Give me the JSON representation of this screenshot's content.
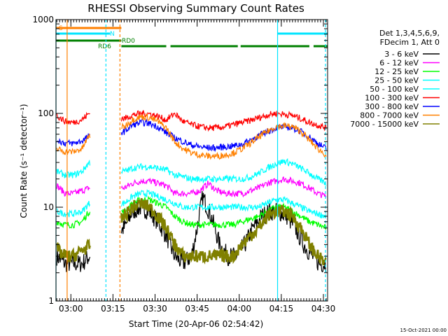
{
  "chart_data": {
    "type": "line",
    "title": "RHESSI Observing Summary Count Rates",
    "xlabel": "Start Time (20-Apr-06 02:54:42)",
    "ylabel": "Count Rate (s⁻¹ detector⁻¹)",
    "y_scale": "log",
    "ylim": [
      1,
      1000
    ],
    "xlim": [
      "02:54:42",
      "04:31:30"
    ],
    "x_ticks": [
      "03:00",
      "03:15",
      "03:30",
      "03:45",
      "04:00",
      "04:15",
      "04:30"
    ],
    "y_ticks": [
      "1",
      "10",
      "100",
      "1000"
    ],
    "footer_date": "15-Oct-2021 00:00",
    "legend": {
      "header": [
        "Det 1,3,4,5,6,9,",
        "FDecim 1, Att 0"
      ],
      "position": "right"
    },
    "flags": [
      {
        "label": "S",
        "color": "#ff8000",
        "segments": [
          [
            "02:54:42",
            "03:18:00"
          ]
        ]
      },
      {
        "label": "N",
        "color": "#00e5ff",
        "segments": [
          [
            "02:54:42",
            "03:14:00"
          ],
          [
            "04:13:40",
            "04:31:30"
          ]
        ]
      },
      {
        "label": "RD0",
        "color": "#008000",
        "segments": [
          [
            "02:54:42",
            "03:18:00"
          ]
        ]
      },
      {
        "label": "RD6",
        "color": "#008000",
        "segments": [
          [
            "03:18:00",
            "03:34:00"
          ],
          [
            "03:35:30",
            "03:59:30"
          ],
          [
            "04:00:30",
            "04:25:00"
          ],
          [
            "04:26:30",
            "04:31:30"
          ]
        ]
      }
    ],
    "markers": [
      {
        "time": "02:54:42",
        "color": "#00e5ff",
        "style": "solid"
      },
      {
        "time": "02:58:40",
        "color": "#ff8000",
        "style": "solid"
      },
      {
        "time": "03:12:30",
        "color": "#00e5ff",
        "style": "dashed"
      },
      {
        "time": "03:17:30",
        "color": "#ff8000",
        "style": "dashed"
      },
      {
        "time": "04:13:40",
        "color": "#00e5ff",
        "style": "solid"
      },
      {
        "time": "04:30:45",
        "color": "#00e5ff",
        "style": "dashed"
      }
    ],
    "data_gaps": [
      [
        "03:06:50",
        "03:17:50"
      ]
    ],
    "series": [
      {
        "name": "3 - 6 keV",
        "color": "#000000",
        "times": [
          "02:55:00",
          "02:58:00",
          "03:01:00",
          "03:04:00",
          "03:06:30",
          "03:19:00",
          "03:22:00",
          "03:25:00",
          "03:28:00",
          "03:31:00",
          "03:34:00",
          "03:37:00",
          "03:40:00",
          "03:43:00",
          "03:45:00",
          "03:47:00",
          "03:50:00",
          "03:53:00",
          "03:56:00",
          "03:59:00",
          "04:02:00",
          "04:05:00",
          "04:08:00",
          "04:11:00",
          "04:14:00",
          "04:17:00",
          "04:20:00",
          "04:23:00",
          "04:26:00",
          "04:28:30",
          "04:31:00"
        ],
        "values": [
          3,
          2.5,
          2.5,
          2.5,
          3,
          6,
          9,
          10,
          9,
          7,
          5,
          3,
          2.5,
          3,
          6,
          13,
          8,
          4,
          3,
          3,
          4,
          6,
          8,
          9,
          9,
          8,
          6,
          4,
          3,
          2.5,
          2.5
        ]
      },
      {
        "name": "6 - 12 keV",
        "color": "#ff00ff",
        "times": [
          "02:55:00",
          "02:58:00",
          "03:01:00",
          "03:04:00",
          "03:06:30",
          "03:19:00",
          "03:22:00",
          "03:25:00",
          "03:28:00",
          "03:31:00",
          "03:34:00",
          "03:37:00",
          "03:40:00",
          "03:43:00",
          "03:46:00",
          "03:49:00",
          "03:52:00",
          "03:55:00",
          "03:58:00",
          "04:01:00",
          "04:04:00",
          "04:07:00",
          "04:10:00",
          "04:13:00",
          "04:16:00",
          "04:19:00",
          "04:22:00",
          "04:25:00",
          "04:28:00",
          "04:31:00"
        ],
        "values": [
          17,
          14,
          14,
          15,
          16,
          16,
          18,
          19,
          19,
          18,
          17,
          14,
          14,
          14,
          15,
          18,
          15,
          14,
          14,
          14,
          15,
          16,
          18,
          19,
          20,
          19,
          18,
          16,
          14,
          13
        ]
      },
      {
        "name": "12 - 25 keV",
        "color": "#00ff00",
        "times": [
          "02:55:00",
          "02:58:00",
          "03:01:00",
          "03:04:00",
          "03:06:30",
          "03:19:00",
          "03:22:00",
          "03:25:00",
          "03:28:00",
          "03:31:00",
          "03:34:00",
          "03:37:00",
          "03:40:00",
          "03:43:00",
          "03:46:00",
          "03:49:00",
          "03:52:00",
          "03:55:00",
          "03:58:00",
          "04:01:00",
          "04:04:00",
          "04:07:00",
          "04:10:00",
          "04:13:00",
          "04:16:00",
          "04:19:00",
          "04:22:00",
          "04:25:00",
          "04:28:00",
          "04:31:00"
        ],
        "values": [
          7,
          6.5,
          6.5,
          7,
          9,
          9,
          11,
          12,
          12,
          11,
          10,
          8,
          7,
          6.5,
          6.5,
          6.5,
          6.5,
          6.5,
          6.5,
          7,
          7.5,
          8,
          9,
          10,
          10,
          9,
          8,
          7,
          6.5,
          6
        ]
      },
      {
        "name": "25 - 50 keV",
        "color": "#00ffff",
        "times": [
          "02:55:00",
          "02:58:00",
          "03:01:00",
          "03:04:00",
          "03:06:30",
          "03:19:00",
          "03:22:00",
          "03:25:00",
          "03:28:00",
          "03:31:00",
          "03:34:00",
          "03:37:00",
          "03:40:00",
          "03:43:00",
          "03:46:00",
          "03:49:00",
          "03:52:00",
          "03:55:00",
          "03:58:00",
          "04:01:00",
          "04:04:00",
          "04:07:00",
          "04:10:00",
          "04:13:00",
          "04:16:00",
          "04:19:00",
          "04:22:00",
          "04:25:00",
          "04:28:00",
          "04:31:00"
        ],
        "values": [
          9,
          8.5,
          8.5,
          9,
          11,
          11,
          13,
          14,
          14,
          13,
          12,
          11,
          10,
          10,
          10,
          10,
          10,
          10,
          10,
          10,
          10,
          10,
          11,
          12,
          12,
          11,
          10,
          9,
          8.5,
          8
        ]
      },
      {
        "name": "50 - 100 keV",
        "color": "#00ffff",
        "times": [
          "02:55:00",
          "02:58:00",
          "03:01:00",
          "03:04:00",
          "03:06:30",
          "03:19:00",
          "03:22:00",
          "03:25:00",
          "03:28:00",
          "03:31:00",
          "03:34:00",
          "03:37:00",
          "03:40:00",
          "03:43:00",
          "03:46:00",
          "03:49:00",
          "03:52:00",
          "03:55:00",
          "03:58:00",
          "04:01:00",
          "04:04:00",
          "04:07:00",
          "04:10:00",
          "04:13:00",
          "04:16:00",
          "04:19:00",
          "04:22:00",
          "04:25:00",
          "04:28:00",
          "04:31:00"
        ],
        "values": [
          24,
          22,
          22,
          24,
          30,
          24,
          26,
          27,
          27,
          26,
          25,
          22,
          21,
          20,
          20,
          20,
          20,
          20,
          20,
          20,
          21,
          23,
          26,
          29,
          31,
          29,
          26,
          23,
          20,
          18
        ]
      },
      {
        "name": "100 - 300 keV",
        "color": "#ff0000",
        "times": [
          "02:55:00",
          "02:58:00",
          "03:01:00",
          "03:04:00",
          "03:06:30",
          "03:19:00",
          "03:22:00",
          "03:25:00",
          "03:28:00",
          "03:31:00",
          "03:34:00",
          "03:37:00",
          "03:40:00",
          "03:43:00",
          "03:46:00",
          "03:49:00",
          "03:52:00",
          "03:55:00",
          "03:58:00",
          "04:01:00",
          "04:04:00",
          "04:07:00",
          "04:10:00",
          "04:13:00",
          "04:16:00",
          "04:19:00",
          "04:22:00",
          "04:25:00",
          "04:28:00",
          "04:31:00"
        ],
        "values": [
          95,
          82,
          80,
          86,
          100,
          88,
          96,
          100,
          99,
          93,
          85,
          100,
          82,
          76,
          72,
          70,
          70,
          72,
          76,
          80,
          84,
          90,
          96,
          100,
          98,
          95,
          88,
          80,
          75,
          70
        ]
      },
      {
        "name": "300 - 800 keV",
        "color": "#0000ff",
        "times": [
          "02:55:00",
          "02:58:00",
          "03:01:00",
          "03:04:00",
          "03:06:30",
          "03:19:00",
          "03:22:00",
          "03:25:00",
          "03:28:00",
          "03:31:00",
          "03:34:00",
          "03:37:00",
          "03:40:00",
          "03:43:00",
          "03:46:00",
          "03:49:00",
          "03:52:00",
          "03:55:00",
          "03:58:00",
          "04:01:00",
          "04:04:00",
          "04:07:00",
          "04:10:00",
          "04:13:00",
          "04:16:00",
          "04:19:00",
          "04:22:00",
          "04:25:00",
          "04:28:00",
          "04:31:00"
        ],
        "values": [
          52,
          48,
          48,
          51,
          57,
          64,
          75,
          80,
          78,
          72,
          62,
          55,
          50,
          46,
          44,
          43,
          43,
          44,
          45,
          47,
          52,
          58,
          64,
          70,
          72,
          70,
          64,
          56,
          48,
          42
        ]
      },
      {
        "name": "800 - 7000 keV",
        "color": "#ff8000",
        "times": [
          "02:55:00",
          "02:58:00",
          "03:01:00",
          "03:04:00",
          "03:06:30",
          "03:19:00",
          "03:22:00",
          "03:25:00",
          "03:28:00",
          "03:31:00",
          "03:34:00",
          "03:37:00",
          "03:40:00",
          "03:43:00",
          "03:46:00",
          "03:49:00",
          "03:52:00",
          "03:55:00",
          "03:58:00",
          "04:01:00",
          "04:04:00",
          "04:07:00",
          "04:10:00",
          "04:13:00",
          "04:16:00",
          "04:19:00",
          "04:22:00",
          "04:25:00",
          "04:28:00",
          "04:31:00"
        ],
        "values": [
          42,
          39,
          39,
          42,
          58,
          72,
          86,
          92,
          90,
          82,
          70,
          50,
          42,
          38,
          36,
          35,
          35,
          36,
          38,
          42,
          48,
          56,
          64,
          72,
          74,
          72,
          64,
          52,
          42,
          36
        ]
      },
      {
        "name": "7000 - 15000 keV",
        "color": "#808000",
        "times": [
          "02:55:00",
          "02:58:00",
          "03:01:00",
          "03:04:00",
          "03:06:30",
          "03:19:00",
          "03:22:00",
          "03:25:00",
          "03:28:00",
          "03:31:00",
          "03:34:00",
          "03:37:00",
          "03:40:00",
          "03:43:00",
          "03:46:00",
          "03:49:00",
          "03:52:00",
          "03:55:00",
          "03:58:00",
          "04:01:00",
          "04:04:00",
          "04:07:00",
          "04:10:00",
          "04:13:00",
          "04:16:00",
          "04:19:00",
          "04:22:00",
          "04:25:00",
          "04:28:00",
          "04:31:00"
        ],
        "values": [
          3.5,
          3,
          3,
          3.5,
          3.8,
          8,
          10,
          11,
          10,
          8,
          6,
          4,
          3,
          3,
          3,
          3,
          3,
          3,
          3,
          4,
          5,
          6,
          8,
          9,
          9,
          8,
          6,
          4,
          3,
          2.5
        ]
      }
    ]
  }
}
